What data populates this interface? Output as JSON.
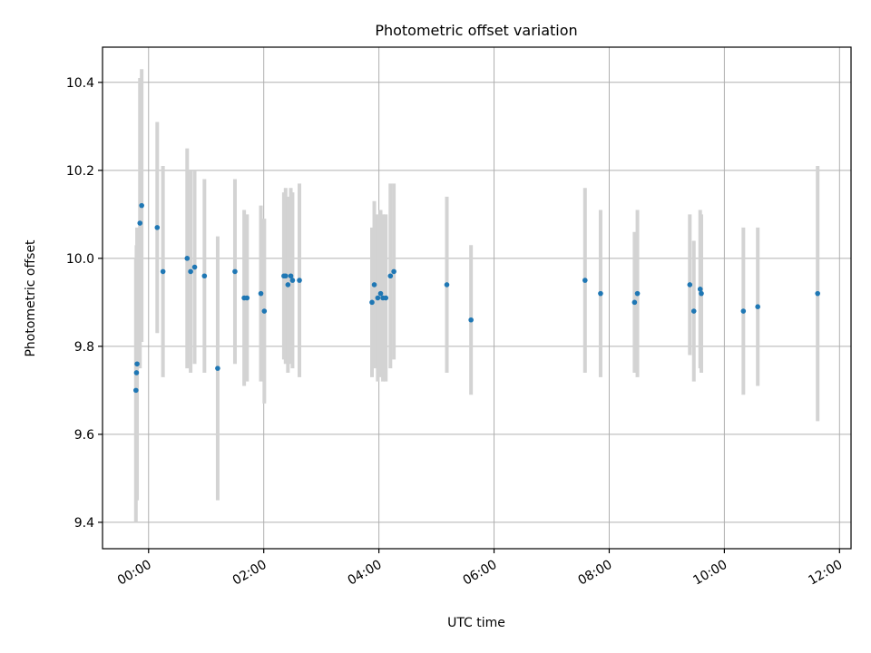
{
  "chart_data": {
    "type": "scatter",
    "title": "Photometric offset variation",
    "xlabel": "UTC time",
    "ylabel": "Photometric offset",
    "xlim_hours": [
      -0.8,
      12.2
    ],
    "ylim": [
      9.34,
      10.48
    ],
    "x_ticks": [
      {
        "value": 0,
        "label": "00:00"
      },
      {
        "value": 2,
        "label": "02:00"
      },
      {
        "value": 4,
        "label": "04:00"
      },
      {
        "value": 6,
        "label": "06:00"
      },
      {
        "value": 8,
        "label": "08:00"
      },
      {
        "value": 10,
        "label": "10:00"
      },
      {
        "value": 12,
        "label": "12:00"
      }
    ],
    "y_ticks": [
      {
        "value": 9.4,
        "label": "9.4"
      },
      {
        "value": 9.6,
        "label": "9.6"
      },
      {
        "value": 9.8,
        "label": "9.8"
      },
      {
        "value": 10.0,
        "label": "10.0"
      },
      {
        "value": 10.2,
        "label": "10.2"
      },
      {
        "value": 10.4,
        "label": "10.4"
      }
    ],
    "grid": true,
    "colors": {
      "point": "#1f77b4",
      "errorbar": "#d3d3d3"
    },
    "points": [
      {
        "t": -0.22,
        "y": 9.7,
        "err": 0.3
      },
      {
        "t": -0.21,
        "y": 9.74,
        "err": 0.29
      },
      {
        "t": -0.2,
        "y": 9.76,
        "err": 0.31
      },
      {
        "t": -0.15,
        "y": 10.08,
        "err": 0.33
      },
      {
        "t": -0.12,
        "y": 10.12,
        "err": 0.31
      },
      {
        "t": 0.15,
        "y": 10.07,
        "err": 0.24
      },
      {
        "t": 0.25,
        "y": 9.97,
        "err": 0.24
      },
      {
        "t": 0.67,
        "y": 10.0,
        "err": 0.25
      },
      {
        "t": 0.73,
        "y": 9.97,
        "err": 0.23
      },
      {
        "t": 0.8,
        "y": 9.98,
        "err": 0.22
      },
      {
        "t": 0.97,
        "y": 9.96,
        "err": 0.22
      },
      {
        "t": 1.2,
        "y": 9.75,
        "err": 0.3
      },
      {
        "t": 1.5,
        "y": 9.97,
        "err": 0.21
      },
      {
        "t": 1.66,
        "y": 9.91,
        "err": 0.2
      },
      {
        "t": 1.71,
        "y": 9.91,
        "err": 0.19
      },
      {
        "t": 1.95,
        "y": 9.92,
        "err": 0.2
      },
      {
        "t": 2.01,
        "y": 9.88,
        "err": 0.21
      },
      {
        "t": 2.35,
        "y": 9.96,
        "err": 0.19
      },
      {
        "t": 2.38,
        "y": 9.96,
        "err": 0.2
      },
      {
        "t": 2.42,
        "y": 9.94,
        "err": 0.2
      },
      {
        "t": 2.47,
        "y": 9.96,
        "err": 0.2
      },
      {
        "t": 2.5,
        "y": 9.95,
        "err": 0.2
      },
      {
        "t": 2.62,
        "y": 9.95,
        "err": 0.22
      },
      {
        "t": 3.88,
        "y": 9.9,
        "err": 0.17
      },
      {
        "t": 3.92,
        "y": 9.94,
        "err": 0.19
      },
      {
        "t": 3.98,
        "y": 9.91,
        "err": 0.19
      },
      {
        "t": 4.03,
        "y": 9.92,
        "err": 0.19
      },
      {
        "t": 4.07,
        "y": 9.91,
        "err": 0.19
      },
      {
        "t": 4.12,
        "y": 9.91,
        "err": 0.19
      },
      {
        "t": 4.2,
        "y": 9.96,
        "err": 0.21
      },
      {
        "t": 4.26,
        "y": 9.97,
        "err": 0.2
      },
      {
        "t": 5.18,
        "y": 9.94,
        "err": 0.2
      },
      {
        "t": 5.6,
        "y": 9.86,
        "err": 0.17
      },
      {
        "t": 7.58,
        "y": 9.95,
        "err": 0.21
      },
      {
        "t": 7.85,
        "y": 9.92,
        "err": 0.19
      },
      {
        "t": 8.44,
        "y": 9.9,
        "err": 0.16
      },
      {
        "t": 8.49,
        "y": 9.92,
        "err": 0.19
      },
      {
        "t": 9.4,
        "y": 9.94,
        "err": 0.16
      },
      {
        "t": 9.47,
        "y": 9.88,
        "err": 0.16
      },
      {
        "t": 9.58,
        "y": 9.93,
        "err": 0.18
      },
      {
        "t": 9.6,
        "y": 9.92,
        "err": 0.18
      },
      {
        "t": 10.33,
        "y": 9.88,
        "err": 0.19
      },
      {
        "t": 10.58,
        "y": 9.89,
        "err": 0.18
      },
      {
        "t": 11.62,
        "y": 9.92,
        "err": 0.29
      }
    ]
  }
}
